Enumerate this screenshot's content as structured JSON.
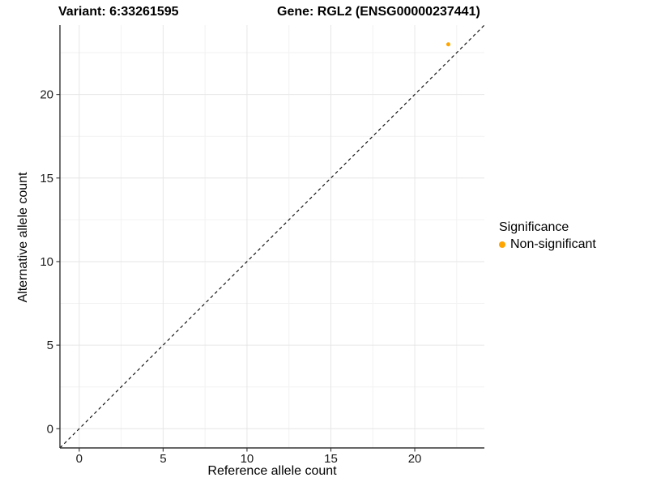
{
  "titles": {
    "variant": "Variant: 6:33261595",
    "gene": "Gene: RGL2 (ENSG00000237441)"
  },
  "chart_data": {
    "type": "scatter",
    "title_variant": "Variant: 6:33261595",
    "title_gene": "Gene: RGL2 (ENSG00000237441)",
    "xlabel": "Reference allele count",
    "ylabel": "Alternative allele count",
    "xlim": [
      -1.15,
      24.15
    ],
    "ylim": [
      -1.15,
      24.15
    ],
    "xticks": [
      0,
      5,
      10,
      15,
      20
    ],
    "yticks": [
      0,
      5,
      10,
      15,
      20
    ],
    "xtick_labels": [
      "0",
      "5",
      "10",
      "15",
      "20"
    ],
    "ytick_labels": [
      "0",
      "5",
      "10",
      "15",
      "20"
    ],
    "minor_xticks": [
      2.5,
      7.5,
      12.5,
      17.5,
      22.5
    ],
    "minor_yticks": [
      2.5,
      7.5,
      12.5,
      17.5,
      22.5
    ],
    "grid": true,
    "points": [
      {
        "x": 22,
        "y": 23,
        "series": "Non-significant",
        "color": "#FFA500"
      }
    ],
    "abline": {
      "slope": 1,
      "intercept": 0,
      "linetype": "dashed",
      "color": "#000000"
    },
    "legend": {
      "position": "right",
      "title": "Significance",
      "items": [
        {
          "label": "Non-significant",
          "color": "#FFA500"
        }
      ]
    }
  },
  "colors": {
    "background": "#FFFFFF",
    "axis_line": "#333333",
    "tick_mark": "#333333",
    "tick_text": "#1A1A1A",
    "grid_major": "#E6E6E6",
    "grid_minor": "#F2F2F2",
    "point": "#FFA500"
  }
}
